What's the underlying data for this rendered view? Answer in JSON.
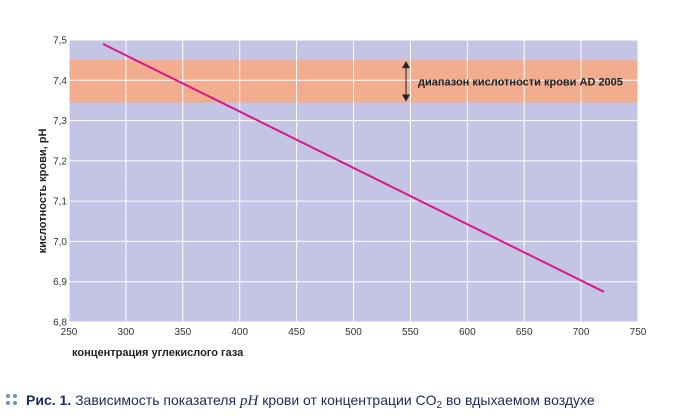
{
  "chart_data": {
    "type": "line",
    "x": [
      280,
      720
    ],
    "series": [
      {
        "values": [
          7.49,
          6.875
        ],
        "color": "#d6198c"
      }
    ],
    "xlim": [
      250,
      750
    ],
    "ylim": [
      6.8,
      7.5
    ],
    "xticks": [
      "250",
      "300",
      "350",
      "400",
      "450",
      "500",
      "550",
      "600",
      "650",
      "700",
      "750"
    ],
    "yticks": [
      "6,8",
      "6,9",
      "7,0",
      "7,1",
      "7,2",
      "7,3",
      "7,4",
      "7,5"
    ],
    "xlabel": "концентрация углекислого газа",
    "ylabel": "кислотность крови, pH",
    "grid": true,
    "band": {
      "from": 7.345,
      "to": 7.45,
      "label": "диапазон кислотности крови AD 2005",
      "color": "#f2ac8e"
    },
    "colors": {
      "plot_bg": "#c4c4e4",
      "grid": "#ffffff"
    }
  },
  "caption": {
    "label": "Рис. 1.",
    "text_before": "Зависимость показателя",
    "var": "pH",
    "text_middle": "крови от концентрации CO",
    "subscript": "2",
    "text_after": "во вдыхаемом воздухе"
  },
  "icons": {
    "caption_marker": "dots-icon"
  }
}
